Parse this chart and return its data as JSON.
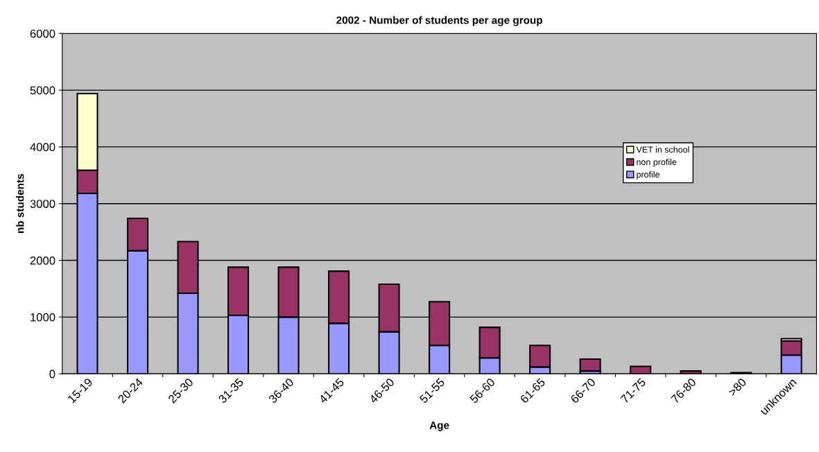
{
  "chart_data": {
    "type": "bar",
    "title": "2002 - Number of students per age group",
    "xlabel": "Age",
    "ylabel": "nb students",
    "categories": [
      "15-19",
      "20-24",
      "25-30",
      "31-35",
      "36-40",
      "41-45",
      "46-50",
      "51-55",
      "56-60",
      "61-65",
      "66-70",
      "71-75",
      "76-80",
      ">80",
      "unknown"
    ],
    "stacked": true,
    "legend": "right",
    "grid": "y",
    "ylim": [
      0,
      6000
    ],
    "yticks": [
      0,
      1000,
      2000,
      3000,
      4000,
      5000,
      6000
    ],
    "series": [
      {
        "name": "profile",
        "color": "#9999ff",
        "values": [
          3180,
          2170,
          1420,
          1030,
          1000,
          890,
          740,
          500,
          280,
          120,
          50,
          null,
          null,
          null,
          330
        ]
      },
      {
        "name": "non profile",
        "color": "#993366",
        "values": [
          410,
          570,
          910,
          850,
          880,
          920,
          840,
          770,
          540,
          380,
          210,
          130,
          50,
          20,
          250
        ]
      },
      {
        "name": "VET in school",
        "color": "#ffffcc",
        "values": [
          1350,
          null,
          null,
          null,
          null,
          null,
          null,
          null,
          null,
          null,
          null,
          null,
          null,
          null,
          40
        ]
      }
    ]
  }
}
